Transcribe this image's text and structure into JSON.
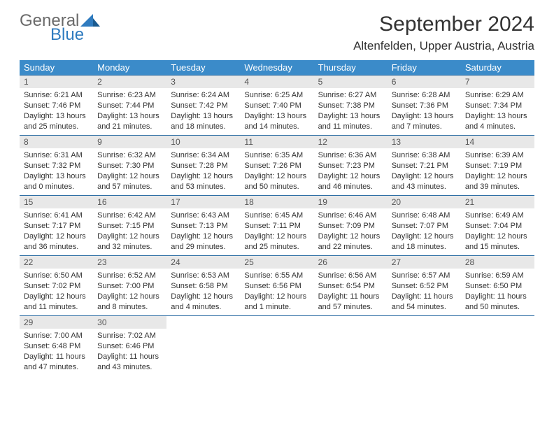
{
  "brand": {
    "part1": "General",
    "part2": "Blue",
    "color1": "#6a6a6a",
    "color2": "#2f7bbf"
  },
  "title": "September 2024",
  "location": "Altenfelden, Upper Austria, Austria",
  "header_bg": "#3b8bc9",
  "header_fg": "#ffffff",
  "daynum_bg": "#e8e8e8",
  "cell_border": "#2f6fa5",
  "weekdays": [
    "Sunday",
    "Monday",
    "Tuesday",
    "Wednesday",
    "Thursday",
    "Friday",
    "Saturday"
  ],
  "weeks": [
    [
      {
        "n": "1",
        "sr": "6:21 AM",
        "ss": "7:46 PM",
        "dl": "13 hours and 25 minutes."
      },
      {
        "n": "2",
        "sr": "6:23 AM",
        "ss": "7:44 PM",
        "dl": "13 hours and 21 minutes."
      },
      {
        "n": "3",
        "sr": "6:24 AM",
        "ss": "7:42 PM",
        "dl": "13 hours and 18 minutes."
      },
      {
        "n": "4",
        "sr": "6:25 AM",
        "ss": "7:40 PM",
        "dl": "13 hours and 14 minutes."
      },
      {
        "n": "5",
        "sr": "6:27 AM",
        "ss": "7:38 PM",
        "dl": "13 hours and 11 minutes."
      },
      {
        "n": "6",
        "sr": "6:28 AM",
        "ss": "7:36 PM",
        "dl": "13 hours and 7 minutes."
      },
      {
        "n": "7",
        "sr": "6:29 AM",
        "ss": "7:34 PM",
        "dl": "13 hours and 4 minutes."
      }
    ],
    [
      {
        "n": "8",
        "sr": "6:31 AM",
        "ss": "7:32 PM",
        "dl": "13 hours and 0 minutes."
      },
      {
        "n": "9",
        "sr": "6:32 AM",
        "ss": "7:30 PM",
        "dl": "12 hours and 57 minutes."
      },
      {
        "n": "10",
        "sr": "6:34 AM",
        "ss": "7:28 PM",
        "dl": "12 hours and 53 minutes."
      },
      {
        "n": "11",
        "sr": "6:35 AM",
        "ss": "7:26 PM",
        "dl": "12 hours and 50 minutes."
      },
      {
        "n": "12",
        "sr": "6:36 AM",
        "ss": "7:23 PM",
        "dl": "12 hours and 46 minutes."
      },
      {
        "n": "13",
        "sr": "6:38 AM",
        "ss": "7:21 PM",
        "dl": "12 hours and 43 minutes."
      },
      {
        "n": "14",
        "sr": "6:39 AM",
        "ss": "7:19 PM",
        "dl": "12 hours and 39 minutes."
      }
    ],
    [
      {
        "n": "15",
        "sr": "6:41 AM",
        "ss": "7:17 PM",
        "dl": "12 hours and 36 minutes."
      },
      {
        "n": "16",
        "sr": "6:42 AM",
        "ss": "7:15 PM",
        "dl": "12 hours and 32 minutes."
      },
      {
        "n": "17",
        "sr": "6:43 AM",
        "ss": "7:13 PM",
        "dl": "12 hours and 29 minutes."
      },
      {
        "n": "18",
        "sr": "6:45 AM",
        "ss": "7:11 PM",
        "dl": "12 hours and 25 minutes."
      },
      {
        "n": "19",
        "sr": "6:46 AM",
        "ss": "7:09 PM",
        "dl": "12 hours and 22 minutes."
      },
      {
        "n": "20",
        "sr": "6:48 AM",
        "ss": "7:07 PM",
        "dl": "12 hours and 18 minutes."
      },
      {
        "n": "21",
        "sr": "6:49 AM",
        "ss": "7:04 PM",
        "dl": "12 hours and 15 minutes."
      }
    ],
    [
      {
        "n": "22",
        "sr": "6:50 AM",
        "ss": "7:02 PM",
        "dl": "12 hours and 11 minutes."
      },
      {
        "n": "23",
        "sr": "6:52 AM",
        "ss": "7:00 PM",
        "dl": "12 hours and 8 minutes."
      },
      {
        "n": "24",
        "sr": "6:53 AM",
        "ss": "6:58 PM",
        "dl": "12 hours and 4 minutes."
      },
      {
        "n": "25",
        "sr": "6:55 AM",
        "ss": "6:56 PM",
        "dl": "12 hours and 1 minute."
      },
      {
        "n": "26",
        "sr": "6:56 AM",
        "ss": "6:54 PM",
        "dl": "11 hours and 57 minutes."
      },
      {
        "n": "27",
        "sr": "6:57 AM",
        "ss": "6:52 PM",
        "dl": "11 hours and 54 minutes."
      },
      {
        "n": "28",
        "sr": "6:59 AM",
        "ss": "6:50 PM",
        "dl": "11 hours and 50 minutes."
      }
    ],
    [
      {
        "n": "29",
        "sr": "7:00 AM",
        "ss": "6:48 PM",
        "dl": "11 hours and 47 minutes."
      },
      {
        "n": "30",
        "sr": "7:02 AM",
        "ss": "6:46 PM",
        "dl": "11 hours and 43 minutes."
      },
      null,
      null,
      null,
      null,
      null
    ]
  ],
  "labels": {
    "sunrise": "Sunrise:",
    "sunset": "Sunset:",
    "daylight": "Daylight:"
  }
}
